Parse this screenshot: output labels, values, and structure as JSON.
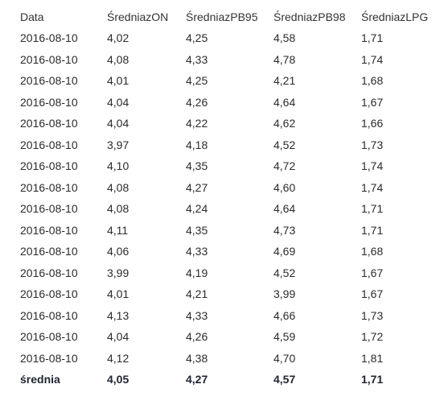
{
  "table": {
    "headers": [
      "Data",
      "ŚredniazON",
      "ŚredniazPB95",
      "ŚredniazPB98",
      "ŚredniazLPG"
    ],
    "rows": [
      [
        "2016-08-10",
        "4,02",
        "4,25",
        "4,58",
        "1,71"
      ],
      [
        "2016-08-10",
        "4,08",
        "4,33",
        "4,78",
        "1,74"
      ],
      [
        "2016-08-10",
        "4,01",
        "4,25",
        "4,21",
        "1,68"
      ],
      [
        "2016-08-10",
        "4,04",
        "4,26",
        "4,64",
        "1,67"
      ],
      [
        "2016-08-10",
        "4,04",
        "4,22",
        "4,62",
        "1,66"
      ],
      [
        "2016-08-10",
        "3,97",
        "4,18",
        "4,52",
        "1,73"
      ],
      [
        "2016-08-10",
        "4,10",
        "4,35",
        "4,72",
        "1,74"
      ],
      [
        "2016-08-10",
        "4,08",
        "4,27",
        "4,60",
        "1,74"
      ],
      [
        "2016-08-10",
        "4,08",
        "4,24",
        "4,64",
        "1,71"
      ],
      [
        "2016-08-10",
        "4,11",
        "4,35",
        "4,73",
        "1,71"
      ],
      [
        "2016-08-10",
        "4,06",
        "4,33",
        "4,69",
        "1,68"
      ],
      [
        "2016-08-10",
        "3,99",
        "4,19",
        "4,52",
        "1,67"
      ],
      [
        "2016-08-10",
        "4,01",
        "4,21",
        "3,99",
        "1,67"
      ],
      [
        "2016-08-10",
        "4,13",
        "4,33",
        "4,66",
        "1,73"
      ],
      [
        "2016-08-10",
        "4,04",
        "4,26",
        "4,59",
        "1,72"
      ],
      [
        "2016-08-10",
        "4,12",
        "4,38",
        "4,70",
        "1,81"
      ]
    ],
    "summary": [
      "średnia",
      "4,05",
      "4,27",
      "4,57",
      "1,71"
    ]
  }
}
